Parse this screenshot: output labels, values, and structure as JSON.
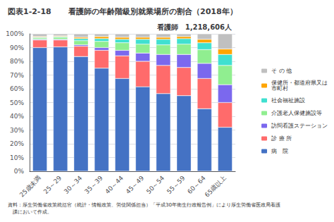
{
  "chart_data": {
    "type": "bar",
    "title": "看護師の年齢階級別就業場所の割合（2018年）",
    "subtitle": "看護師　1,218,606人",
    "annotations": [
      "図表1-2-18",
      "資料：厚生労働省政策統括官（統計・情報政策、労使関係担当）「平成30年衛生行政報告例」により厚生労働省医政局看護\n　課において作成。"
    ],
    "categories": [
      "25歳未満",
      "25～29",
      "30～34",
      "35～39",
      "40～44",
      "45～49",
      "50～54",
      "55～59",
      "60～64",
      "65歳以上"
    ],
    "series": [
      {
        "name": "病　院",
        "color": "#4472C4",
        "values": [
          90.0,
          90.5,
          83.5,
          75.0,
          67.5,
          61.5,
          56.5,
          55.0,
          45.5,
          32.0
        ]
      },
      {
        "name": "診 療 所",
        "color": "#FF6B6B",
        "values": [
          5.5,
          5.0,
          7.5,
          13.0,
          16.5,
          18.5,
          20.5,
          20.5,
          22.0,
          18.0
        ]
      },
      {
        "name": "訪問看護ステーション",
        "color": "#7B68EE",
        "values": [
          0.5,
          0.5,
          1.0,
          2.0,
          4.0,
          6.0,
          8.0,
          9.5,
          11.0,
          13.0
        ]
      },
      {
        "name": "介護老人保健施設等",
        "color": "#90EE90",
        "values": [
          1.0,
          1.5,
          3.0,
          4.5,
          5.5,
          6.5,
          7.0,
          7.5,
          10.0,
          14.0
        ]
      },
      {
        "name": "社会福祉施設",
        "color": "#40E0D0",
        "values": [
          0.5,
          0.5,
          1.5,
          2.0,
          2.5,
          3.5,
          4.0,
          4.0,
          5.0,
          8.0
        ]
      },
      {
        "name": "保健所・都道府県又は\n市町村",
        "color": "#FFA500",
        "values": [
          0.5,
          0.5,
          1.0,
          1.5,
          1.5,
          1.5,
          1.5,
          1.5,
          2.5,
          4.0
        ]
      },
      {
        "name": "そ の 他",
        "color": "#C0C0C0",
        "values": [
          2.0,
          1.5,
          2.5,
          2.0,
          2.5,
          2.5,
          2.5,
          2.0,
          4.0,
          11.0
        ]
      }
    ],
    "stacked": true,
    "ylim": [
      0,
      100
    ],
    "yticks": [
      {
        "value": 0,
        "label": "0%"
      },
      {
        "value": 10,
        "label": "10%"
      },
      {
        "value": 20,
        "label": "20%"
      },
      {
        "value": 30,
        "label": "30%"
      },
      {
        "value": 40,
        "label": "40%"
      },
      {
        "value": 50,
        "label": "50%"
      },
      {
        "value": 60,
        "label": "60%"
      },
      {
        "value": 70,
        "label": "70%"
      },
      {
        "value": 80,
        "label": "80%"
      },
      {
        "value": 90,
        "label": "90%"
      },
      {
        "value": 100,
        "label": "100%"
      }
    ],
    "grid": true,
    "legend": "right"
  }
}
